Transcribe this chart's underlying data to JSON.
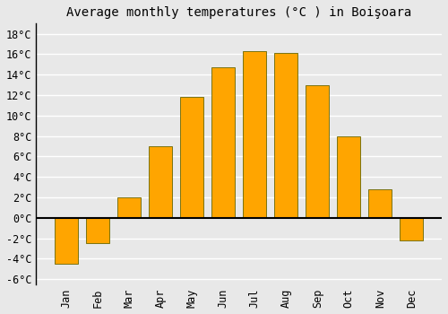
{
  "title": "Average monthly temperatures (°C ) in Boişoara",
  "months": [
    "Jan",
    "Feb",
    "Mar",
    "Apr",
    "May",
    "Jun",
    "Jul",
    "Aug",
    "Sep",
    "Oct",
    "Nov",
    "Dec"
  ],
  "values": [
    -4.5,
    -2.5,
    2.0,
    7.0,
    11.8,
    14.7,
    16.3,
    16.1,
    13.0,
    8.0,
    2.8,
    -2.2
  ],
  "bar_color": "#FFA500",
  "bar_edge_color": "#666600",
  "background_color": "#e8e8e8",
  "plot_bg_color": "#e8e8e8",
  "ylim": [
    -6.5,
    19
  ],
  "yticks": [
    -6,
    -4,
    -2,
    0,
    2,
    4,
    6,
    8,
    10,
    12,
    14,
    16,
    18
  ],
  "grid_color": "#ffffff",
  "title_fontsize": 10,
  "tick_fontsize": 8.5
}
